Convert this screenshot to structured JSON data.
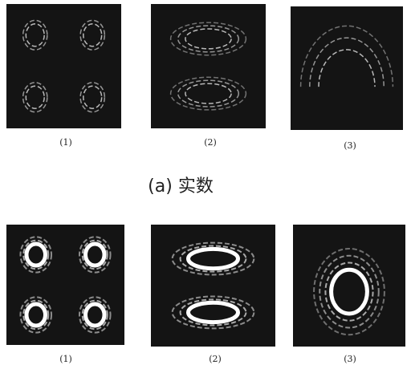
{
  "figure": {
    "rows": [
      {
        "panels": [
          {
            "label": "(1)"
          },
          {
            "label": "(2)"
          },
          {
            "label": "(3)"
          }
        ],
        "caption": "(a) 实数"
      },
      {
        "panels": [
          {
            "label": "(1)"
          },
          {
            "label": "(2)"
          },
          {
            "label": "(3)"
          }
        ]
      }
    ]
  }
}
